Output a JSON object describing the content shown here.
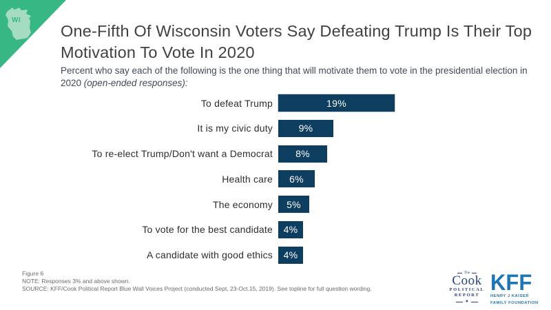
{
  "branding": {
    "state_abbr": "WI",
    "corner_color": "#36b783",
    "state_fill": "#a5dbc1"
  },
  "header": {
    "title": "One-Fifth Of Wisconsin Voters Say Defeating Trump Is Their Top Motivation To Vote In 2020",
    "subtitle_regular": "Percent who say each of the following is the one thing that will motivate them to vote in the presidential election in 2020 ",
    "subtitle_italic": "(open-ended responses):"
  },
  "chart_data": {
    "type": "bar",
    "orientation": "horizontal",
    "title": "Percent who say each of the following is the one thing that will motivate them to vote in the presidential election in 2020 (open-ended responses)",
    "categories": [
      "To defeat Trump",
      "It is my civic duty",
      "To re-elect Trump/Don't want a Democrat",
      "Health care",
      "The economy",
      "To vote for the best candidate",
      "A candidate with good ethics"
    ],
    "values": [
      19,
      9,
      8,
      6,
      5,
      4,
      4
    ],
    "value_labels": [
      "19%",
      "9%",
      "8%",
      "6%",
      "5%",
      "4%",
      "4%"
    ],
    "xlim": [
      0,
      22
    ],
    "grid": false,
    "legend": false,
    "bar_color": "#0e3e5f",
    "value_label_color": "#ffffff"
  },
  "footer": {
    "figure_label": "Figure 6",
    "note": "NOTE: Responses 3% and above shown.",
    "source": "SOURCE: KFF/Cook Political Report Blue Wall Voices Project (conducted Sept. 23-Oct.15, 2019). See topline for full question wording."
  },
  "logos": {
    "cook": {
      "the": "The",
      "name": "Cook",
      "line1": "POLITICAL",
      "line2": "REPORT",
      "star": "★",
      "color": "#23437a"
    },
    "kff": {
      "name": "KFF",
      "line1": "HENRY J KAISER",
      "line2": "FAMILY FOUNDATION",
      "color": "#1e75b6"
    }
  }
}
